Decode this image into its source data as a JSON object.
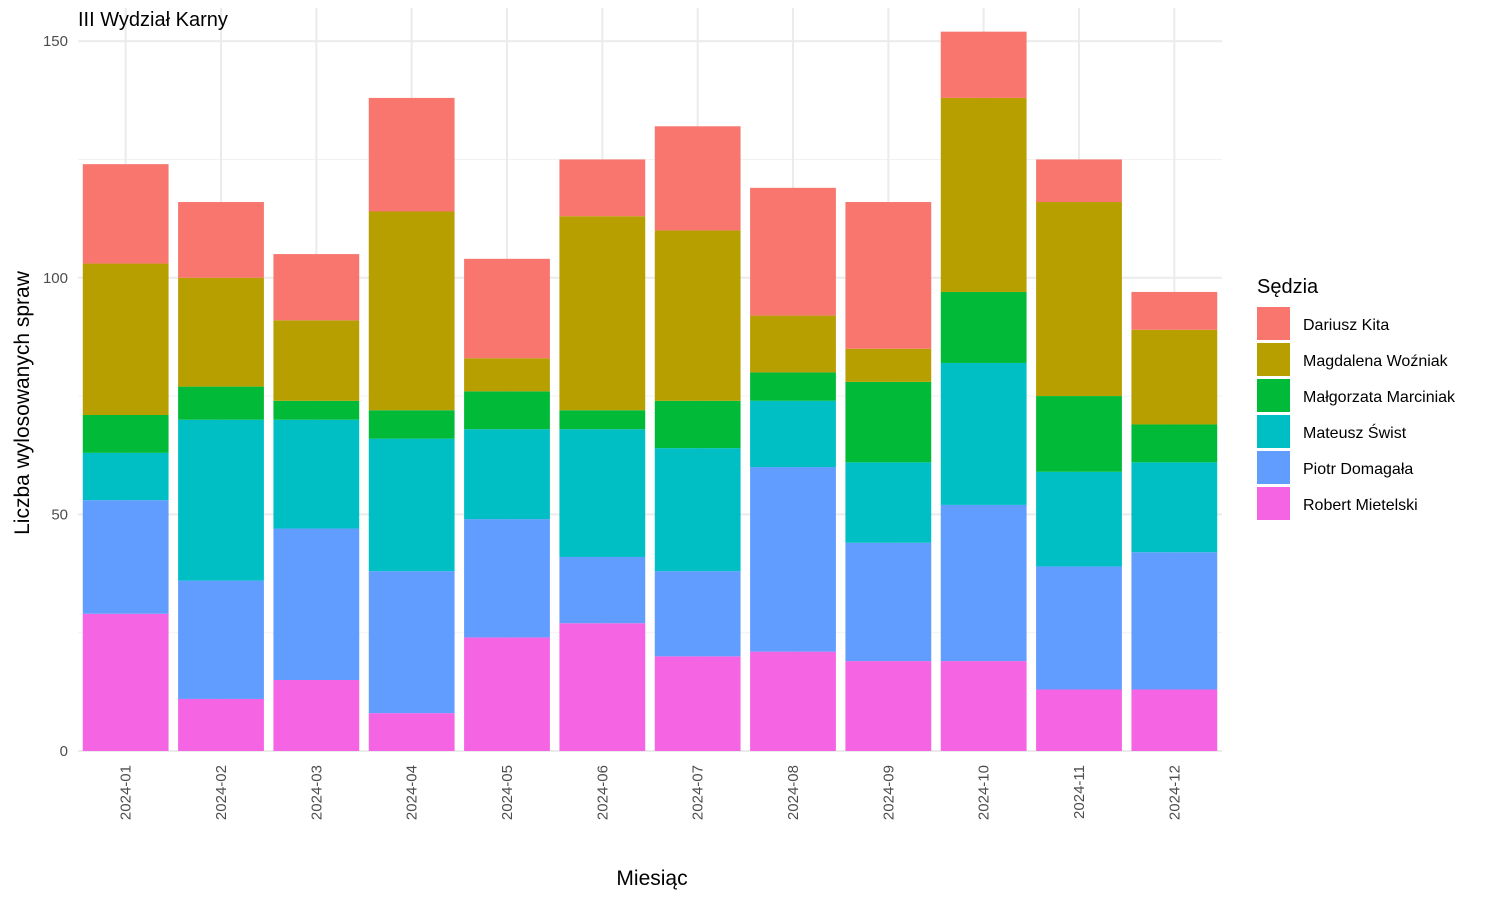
{
  "chart_data": {
    "type": "bar",
    "stacked": true,
    "title": "III Wydział Karny",
    "xlabel": "Miesiąc",
    "ylabel": "Liczba wylosowanych spraw",
    "ylim": [
      0,
      157
    ],
    "yticks": [
      0,
      50,
      100,
      150
    ],
    "grid": true,
    "legend_title": "Sędzia",
    "legend_position": "right",
    "categories": [
      "2024-01",
      "2024-02",
      "2024-03",
      "2024-04",
      "2024-05",
      "2024-06",
      "2024-07",
      "2024-08",
      "2024-09",
      "2024-10",
      "2024-11",
      "2024-12"
    ],
    "series": [
      {
        "name": "Dariusz Kita",
        "color": "#F8766D",
        "values": [
          21,
          16,
          14,
          24,
          21,
          12,
          22,
          27,
          31,
          14,
          9,
          8
        ]
      },
      {
        "name": "Magdalena Woźniak",
        "color": "#B79F00",
        "values": [
          32,
          23,
          17,
          42,
          7,
          41,
          36,
          12,
          7,
          41,
          41,
          20
        ]
      },
      {
        "name": "Małgorzata Marciniak",
        "color": "#00BA38",
        "values": [
          8,
          7,
          4,
          6,
          8,
          4,
          10,
          6,
          17,
          15,
          16,
          8
        ]
      },
      {
        "name": "Mateusz Świst",
        "color": "#00BFC4",
        "values": [
          10,
          34,
          23,
          28,
          19,
          27,
          26,
          14,
          17,
          30,
          20,
          19
        ]
      },
      {
        "name": "Piotr Domagała",
        "color": "#619CFF",
        "values": [
          24,
          25,
          32,
          30,
          25,
          14,
          18,
          39,
          25,
          33,
          26,
          29
        ]
      },
      {
        "name": "Robert Mietelski",
        "color": "#F564E3",
        "values": [
          29,
          11,
          15,
          8,
          24,
          27,
          20,
          21,
          19,
          19,
          13,
          13
        ]
      }
    ]
  }
}
